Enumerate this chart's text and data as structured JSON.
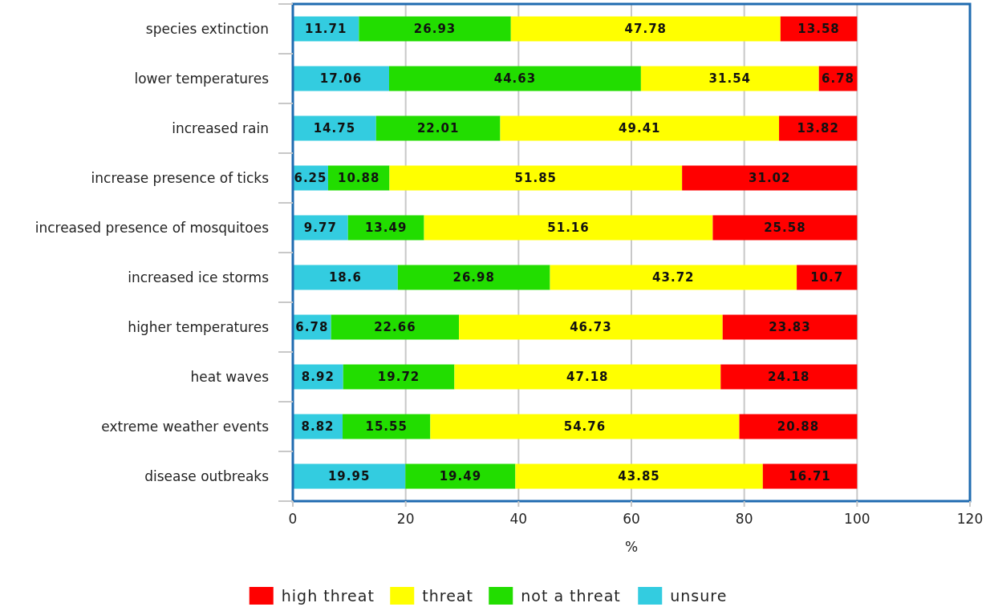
{
  "chart_data": {
    "type": "bar",
    "orientation": "horizontal",
    "stacked": true,
    "xlabel": "%",
    "xlim": [
      0,
      120
    ],
    "xticks": [
      0,
      20,
      40,
      60,
      80,
      100,
      120
    ],
    "grid": "x",
    "legend": "bottom",
    "data_labels": true,
    "categories": [
      "species extinction",
      "lower temperatures",
      "increased rain",
      "increase presence of ticks",
      "increased presence of mosquitoes",
      "increased ice storms",
      "higher temperatures",
      "heat waves",
      "extreme weather events",
      "disease outbreaks"
    ],
    "series": [
      {
        "name": "unsure",
        "color": "#33cce0",
        "values": [
          11.71,
          17.06,
          14.75,
          6.25,
          9.77,
          18.6,
          6.78,
          8.92,
          8.82,
          19.95
        ]
      },
      {
        "name": "not a threat",
        "color": "#22dd00",
        "values": [
          26.93,
          44.63,
          22.01,
          10.88,
          13.49,
          26.98,
          22.66,
          19.72,
          15.55,
          19.49
        ]
      },
      {
        "name": "threat",
        "color": "#ffff00",
        "values": [
          47.78,
          31.54,
          49.41,
          51.85,
          51.16,
          43.72,
          46.73,
          47.18,
          54.76,
          43.85
        ]
      },
      {
        "name": "high threat",
        "color": "#ff0000",
        "values": [
          13.58,
          6.78,
          13.82,
          31.02,
          25.58,
          10.7,
          23.83,
          24.18,
          20.88,
          16.71
        ]
      }
    ]
  }
}
